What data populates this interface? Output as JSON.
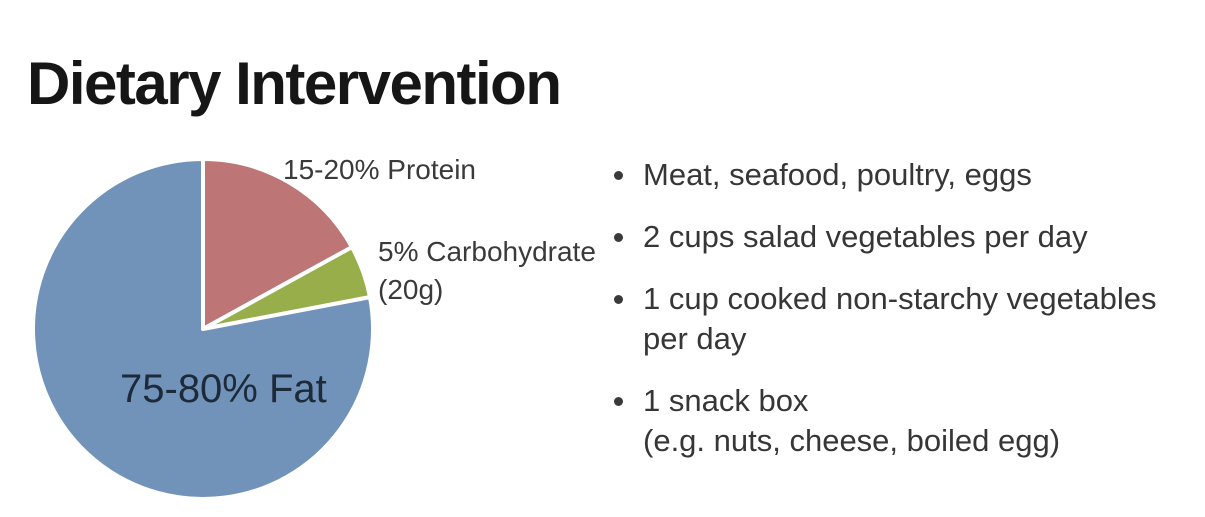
{
  "slide": {
    "title": "Dietary Intervention"
  },
  "chart_data": {
    "type": "pie",
    "title": "",
    "legend": "none",
    "start_angle_deg": 0,
    "direction": "clockwise",
    "slice_border_color": "#FFFFFF",
    "slices": [
      {
        "name": "protein",
        "label": "15-20% Protein",
        "label_lines": [
          "15-20% Protein"
        ],
        "value": 17,
        "value_note": "15-20%",
        "color": "#BD7575"
      },
      {
        "name": "carbohydrate",
        "label": "5% Carbohydrate (20g)",
        "label_lines": [
          "5% Carbohydrate",
          "(20g)"
        ],
        "value": 5,
        "value_note": "5% (20g)",
        "color": "#97AE4A"
      },
      {
        "name": "fat",
        "label": "75-80% Fat",
        "label_lines": [
          "75-80% Fat"
        ],
        "value": 78,
        "value_note": "75-80%",
        "color": "#7193BA"
      }
    ]
  },
  "bullets": {
    "marker_icon": "disc",
    "items": [
      {
        "lines": [
          "Meat, seafood, poultry, eggs"
        ]
      },
      {
        "lines": [
          "2 cups salad vegetables per day"
        ]
      },
      {
        "lines": [
          "1 cup cooked non-starchy vegetables",
          "per day"
        ]
      },
      {
        "lines": [
          "1 snack box",
          "(e.g. nuts, cheese, boiled egg)"
        ]
      }
    ]
  }
}
